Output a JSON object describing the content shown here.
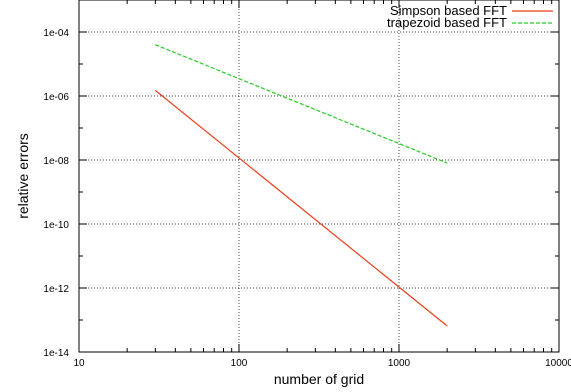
{
  "chart_data": {
    "type": "line",
    "title": "",
    "xlabel": "number of grid",
    "ylabel": "relative errors",
    "xscale": "log",
    "yscale": "log",
    "xlim": [
      10,
      10000
    ],
    "ylim": [
      1e-14,
      0.001
    ],
    "x_ticks": [
      10,
      100,
      1000,
      10000
    ],
    "x_tick_labels": [
      "10",
      "100",
      "1000",
      "10000"
    ],
    "y_ticks": [
      1e-14,
      1e-12,
      1e-10,
      1e-08,
      1e-06,
      0.0001
    ],
    "y_tick_labels": [
      "1e-14",
      "1e-12",
      "1e-10",
      "1e-08",
      "1e-06",
      "1e-04"
    ],
    "grid": true,
    "legend_position": "top-right",
    "series": [
      {
        "name": "Simpson based FFT",
        "color": "#e8401c",
        "dash": "solid",
        "x": [
          30,
          2000
        ],
        "y": [
          1.5e-06,
          6.5e-14
        ]
      },
      {
        "name": "trapezoid based FFT",
        "color": "#22cc22",
        "dash": "dashed",
        "x": [
          30,
          2000
        ],
        "y": [
          4e-05,
          8e-09
        ]
      }
    ]
  }
}
